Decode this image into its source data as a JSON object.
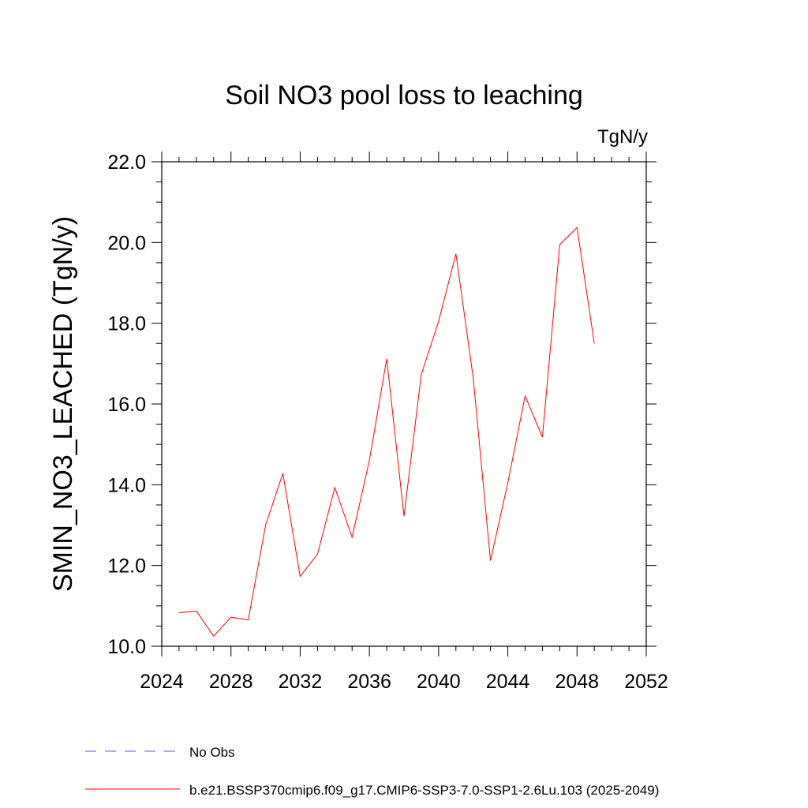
{
  "chart_data": {
    "type": "line",
    "title": "Soil NO3 pool loss to leaching",
    "units": "TgN/y",
    "ylabel": "SMIN_NO3_LEACHED  (TgN/y)",
    "xlabel": "",
    "xlim": [
      2024,
      2052
    ],
    "ylim": [
      10.0,
      22.0
    ],
    "x_ticks": [
      2024,
      2028,
      2032,
      2036,
      2040,
      2044,
      2048,
      2052
    ],
    "x_tick_labels": [
      "2024",
      "2028",
      "2032",
      "2036",
      "2040",
      "2044",
      "2048",
      "2052"
    ],
    "y_ticks": [
      10,
      12,
      14,
      16,
      18,
      20,
      22
    ],
    "y_tick_labels": [
      "10.0",
      "12.0",
      "14.0",
      "16.0",
      "18.0",
      "20.0",
      "22.0"
    ],
    "grid": false,
    "legend_position": "bottom",
    "series": [
      {
        "name": "No Obs",
        "color": "#6a5acd",
        "dash": "dashed",
        "x": [],
        "values": []
      },
      {
        "name": "b.e21.BSSP370cmip6.f09_g17.CMIP6-SSP3-7.0-SSP1-2.6Lu.103 (2025-2049)",
        "color": "#ff0000",
        "dash": "solid",
        "x": [
          2025,
          2026,
          2027,
          2028,
          2029,
          2030,
          2031,
          2032,
          2033,
          2034,
          2035,
          2036,
          2037,
          2038,
          2039,
          2040,
          2041,
          2042,
          2043,
          2044,
          2045,
          2046,
          2047,
          2048,
          2049
        ],
        "values": [
          10.83,
          10.87,
          10.25,
          10.72,
          10.65,
          13.0,
          14.28,
          11.73,
          12.28,
          13.93,
          12.7,
          14.6,
          17.12,
          13.22,
          16.73,
          18.05,
          19.72,
          16.65,
          12.12,
          14.05,
          16.2,
          15.18,
          19.95,
          20.37,
          17.5
        ]
      }
    ]
  }
}
